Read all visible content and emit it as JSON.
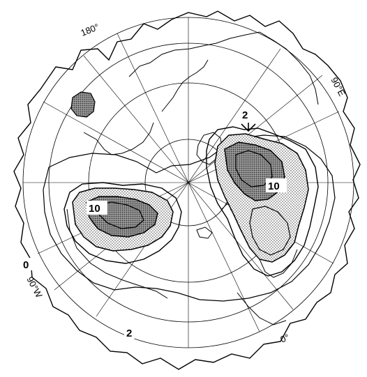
{
  "lon_labels": {
    "lon_180": "180°",
    "lon_90e": "90°E",
    "lon_0": "0°",
    "lon_90w": "90°W"
  },
  "contour_labels": {
    "label_2_top": "2",
    "label_10_east": "10",
    "label_10_west": "10",
    "label_0_left": "0",
    "label_2_bottom": "2"
  },
  "colors": {
    "ink": "#000000",
    "paper": "#ffffff",
    "stipple": "#6a6a6a"
  }
}
